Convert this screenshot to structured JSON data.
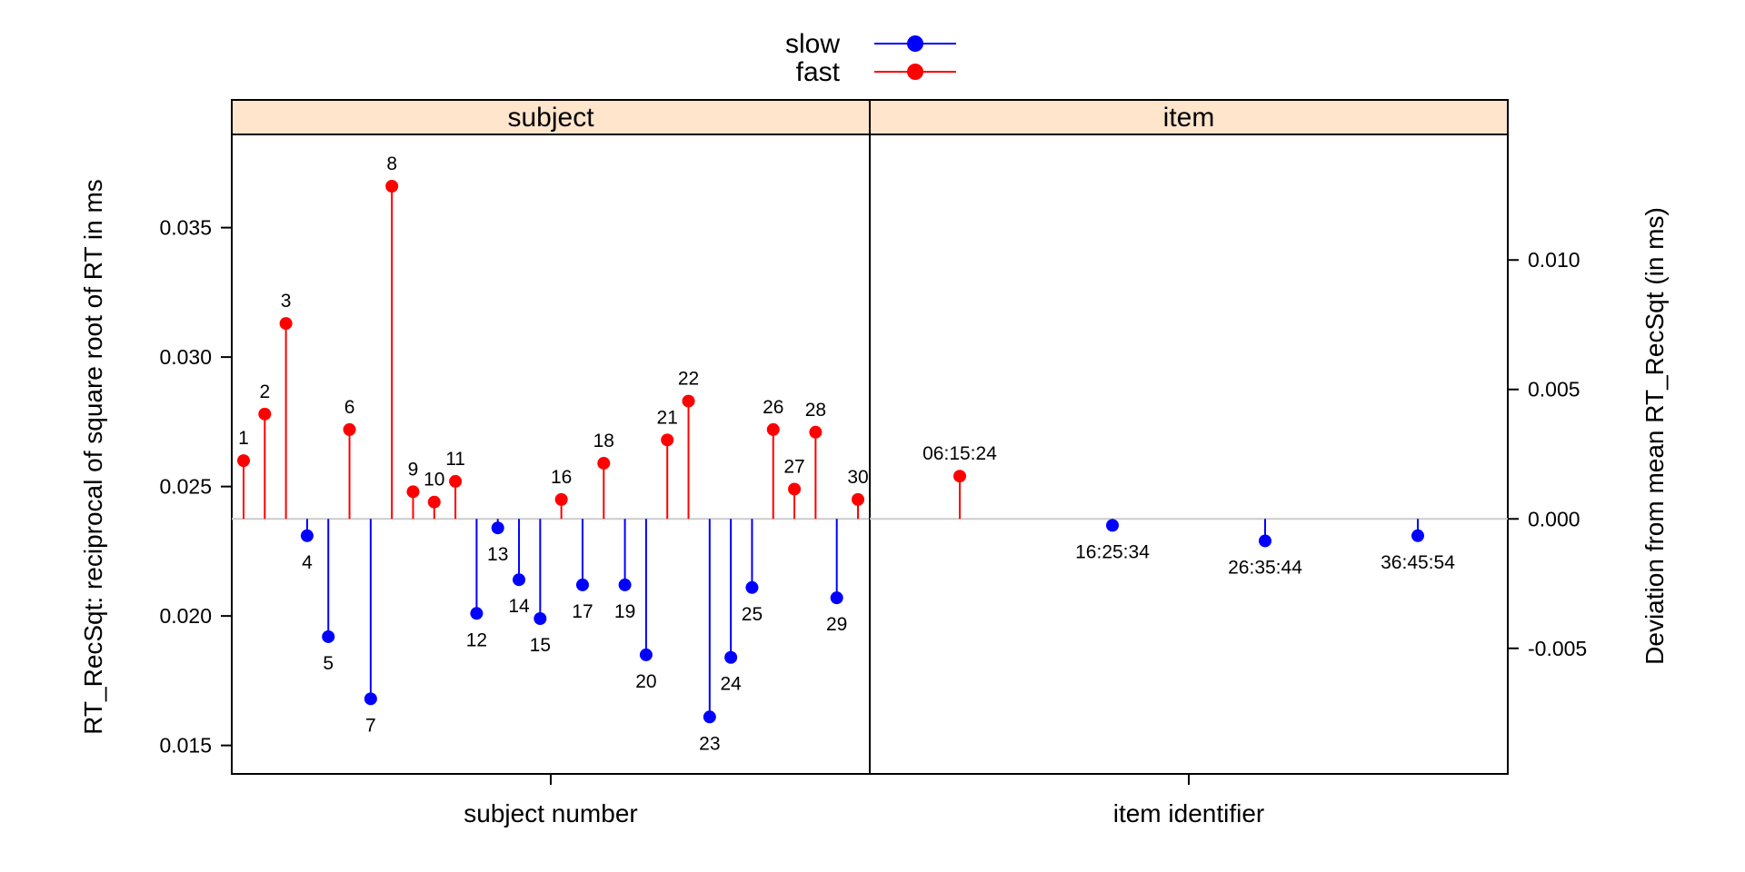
{
  "chart_data": {
    "type": "dotplot",
    "title": "",
    "legend": {
      "placement": "top-center",
      "entries": [
        {
          "name": "slow",
          "color": "#0000ff"
        },
        {
          "name": "fast",
          "color": "#ff0000"
        }
      ]
    },
    "ylabel_left": "RT_RecSqt: reciprocal of square root of RT in ms",
    "ylabel_right": "Deviation from mean RT_RecSqt (in ms)",
    "y_left": {
      "range": [
        0.0139,
        0.0386
      ],
      "ticks": [
        0.015,
        0.02,
        0.025,
        0.03,
        0.035
      ],
      "tick_labels": [
        "0.015",
        "0.020",
        "0.025",
        "0.030",
        "0.035"
      ]
    },
    "y_right": {
      "ticks": [
        -0.005,
        0.0,
        0.005,
        0.01
      ],
      "tick_labels": [
        "-0.005",
        "0.000",
        "0.005",
        "0.010"
      ]
    },
    "baseline": 0.02375,
    "grid": false,
    "panels": [
      {
        "strip": "subject",
        "xlabel": "subject number",
        "points": [
          {
            "label": "1",
            "value": 0.026,
            "group": "fast"
          },
          {
            "label": "2",
            "value": 0.0278,
            "group": "fast"
          },
          {
            "label": "3",
            "value": 0.0313,
            "group": "fast"
          },
          {
            "label": "4",
            "value": 0.0231,
            "group": "slow"
          },
          {
            "label": "5",
            "value": 0.0192,
            "group": "slow"
          },
          {
            "label": "6",
            "value": 0.0272,
            "group": "fast"
          },
          {
            "label": "7",
            "value": 0.0168,
            "group": "slow"
          },
          {
            "label": "8",
            "value": 0.0366,
            "group": "fast"
          },
          {
            "label": "9",
            "value": 0.0248,
            "group": "fast"
          },
          {
            "label": "10",
            "value": 0.0244,
            "group": "fast"
          },
          {
            "label": "11",
            "value": 0.0252,
            "group": "fast"
          },
          {
            "label": "12",
            "value": 0.0201,
            "group": "slow"
          },
          {
            "label": "13",
            "value": 0.0234,
            "group": "slow"
          },
          {
            "label": "14",
            "value": 0.0214,
            "group": "slow"
          },
          {
            "label": "15",
            "value": 0.0199,
            "group": "slow"
          },
          {
            "label": "16",
            "value": 0.0245,
            "group": "fast"
          },
          {
            "label": "17",
            "value": 0.0212,
            "group": "slow"
          },
          {
            "label": "18",
            "value": 0.0259,
            "group": "fast"
          },
          {
            "label": "19",
            "value": 0.0212,
            "group": "slow"
          },
          {
            "label": "20",
            "value": 0.0185,
            "group": "slow"
          },
          {
            "label": "21",
            "value": 0.0268,
            "group": "fast"
          },
          {
            "label": "22",
            "value": 0.0283,
            "group": "fast"
          },
          {
            "label": "23",
            "value": 0.0161,
            "group": "slow"
          },
          {
            "label": "24",
            "value": 0.0184,
            "group": "slow"
          },
          {
            "label": "25",
            "value": 0.0211,
            "group": "slow"
          },
          {
            "label": "26",
            "value": 0.0272,
            "group": "fast"
          },
          {
            "label": "27",
            "value": 0.0249,
            "group": "fast"
          },
          {
            "label": "28",
            "value": 0.0271,
            "group": "fast"
          },
          {
            "label": "29",
            "value": 0.0207,
            "group": "slow"
          },
          {
            "label": "30",
            "value": 0.0245,
            "group": "fast"
          }
        ]
      },
      {
        "strip": "item",
        "xlabel": "item identifier",
        "points": [
          {
            "label": "06:15:24",
            "value": 0.0254,
            "group": "fast"
          },
          {
            "label": "16:25:34",
            "value": 0.0235,
            "group": "slow"
          },
          {
            "label": "26:35:44",
            "value": 0.0229,
            "group": "slow"
          },
          {
            "label": "36:45:54",
            "value": 0.0231,
            "group": "slow"
          }
        ]
      }
    ]
  },
  "style": {
    "strip_fill": "#ffe5cc",
    "baseline_color": "#cccccc",
    "slow_color": "#0000ff",
    "fast_color": "#ff0000"
  }
}
